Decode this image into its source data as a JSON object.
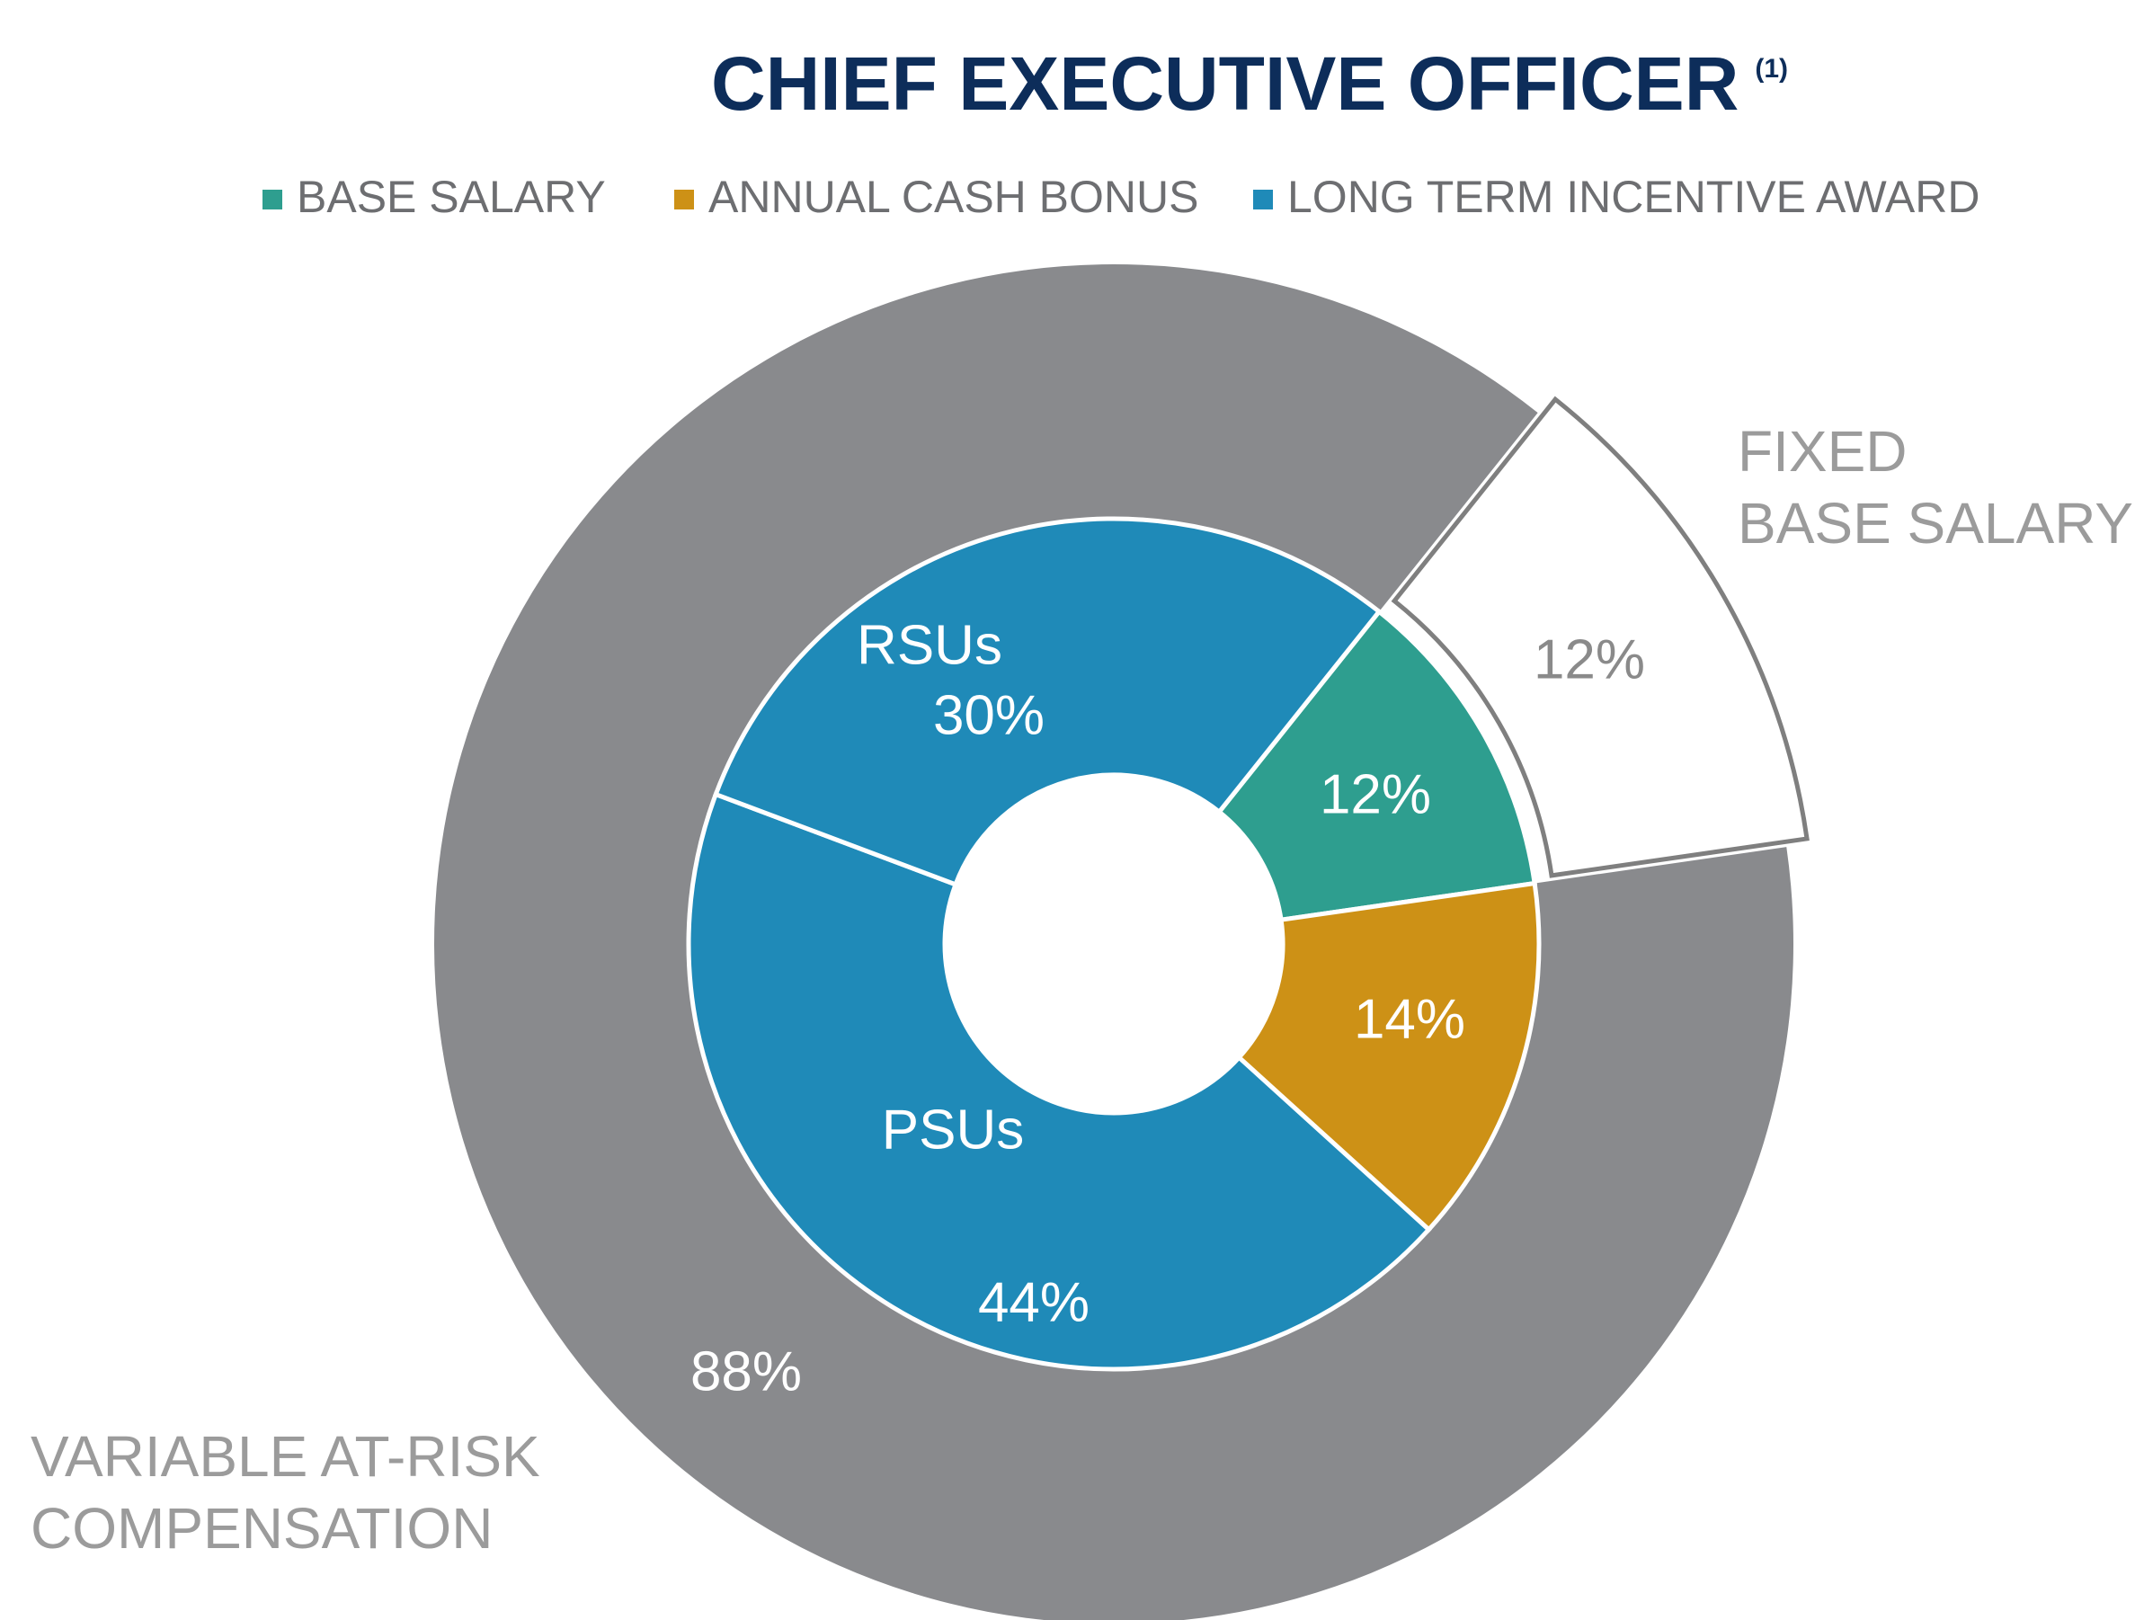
{
  "chart_data": {
    "type": "nested-donut",
    "title": "CHIEF EXECUTIVE OFFICER",
    "title_note": "(1)",
    "legend": [
      {
        "name": "BASE SALARY",
        "color": "#2e9e8f"
      },
      {
        "name": "ANNUAL CASH BONUS",
        "color": "#cd9116"
      },
      {
        "name": "LONG TERM INCENTIVE AWARD",
        "color": "#1f8ab8"
      }
    ],
    "inner": {
      "categories": [
        null,
        null,
        "PSUs",
        "RSUs"
      ],
      "values": [
        12,
        14,
        44,
        30
      ],
      "value_labels": [
        "12%",
        "14%",
        "44%",
        "30%"
      ],
      "colors": [
        "#2e9e8f",
        "#cd9116",
        "#1f8ab8",
        "#1f8ab8"
      ]
    },
    "outer": {
      "labels": [
        [
          "FIXED",
          "BASE SALARY"
        ],
        [
          "VARIABLE AT-RISK",
          "COMPENSATION"
        ]
      ],
      "values": [
        12,
        88
      ],
      "value_labels": [
        "12%",
        "88%"
      ],
      "colors": [
        "#ffffff",
        "#898a8d"
      ]
    }
  }
}
